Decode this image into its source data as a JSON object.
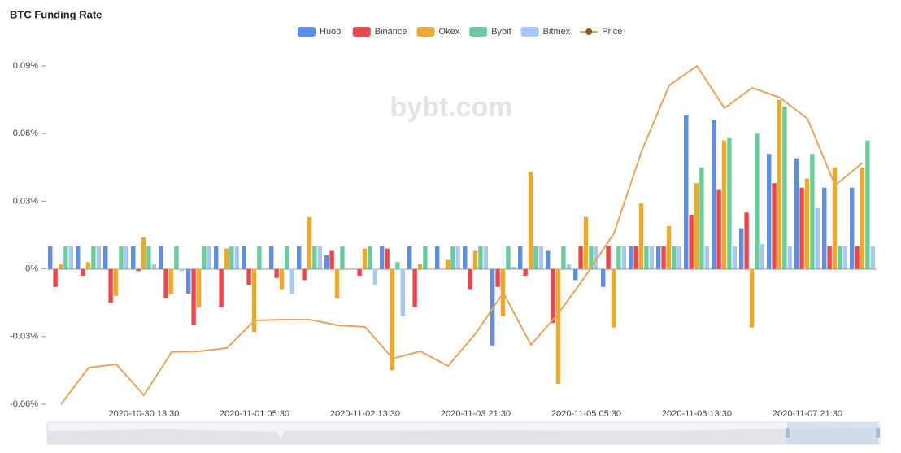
{
  "chart_data": {
    "type": "bar",
    "title": "BTC Funding Rate",
    "watermark": "bybt.com",
    "categories": [
      null,
      null,
      null,
      "2020-10-30 13:30",
      null,
      null,
      null,
      "2020-11-01 05:30",
      null,
      null,
      null,
      "2020-11-02 13:30",
      null,
      null,
      null,
      "2020-11-03 21:30",
      null,
      null,
      null,
      "2020-11-05 05:30",
      null,
      null,
      null,
      "2020-11-06 13:30",
      null,
      null,
      null,
      "2020-11-07 21:30",
      null,
      null
    ],
    "series": [
      {
        "name": "Huobi",
        "color": "#5b8ee6",
        "values": [
          0.01,
          0.01,
          0.01,
          0.01,
          0.01,
          -0.011,
          0.01,
          0.01,
          0.01,
          0.01,
          0.006,
          0,
          0.01,
          0.01,
          0.01,
          0.01,
          -0.034,
          0.01,
          0.008,
          -0.005,
          -0.008,
          0.01,
          0.01,
          0.068,
          0.066,
          0.018,
          0.051,
          0.049,
          0.036,
          0.036
        ]
      },
      {
        "name": "Binance",
        "color": "#e8474c",
        "values": [
          -0.008,
          -0.003,
          -0.015,
          -0.001,
          -0.013,
          -0.025,
          -0.017,
          -0.007,
          -0.004,
          -0.005,
          0.008,
          -0.003,
          0.009,
          -0.017,
          0,
          -0.009,
          -0.008,
          -0.003,
          -0.024,
          0.01,
          0.01,
          0.01,
          0.01,
          0.024,
          0.035,
          0.025,
          0.038,
          0.036,
          0.01,
          0.01
        ]
      },
      {
        "name": "Okex",
        "color": "#e6a93a",
        "values": [
          0.002,
          0.003,
          -0.012,
          0.014,
          -0.011,
          -0.017,
          0.009,
          -0.028,
          -0.009,
          0.023,
          -0.013,
          0.009,
          -0.045,
          0.002,
          0.004,
          0.008,
          -0.021,
          0.043,
          -0.051,
          0.023,
          -0.026,
          0.029,
          0.019,
          0.038,
          0.057,
          -0.026,
          0.075,
          0.04,
          0.045,
          0.045
        ]
      },
      {
        "name": "Bybit",
        "color": "#6ccb9b",
        "values": [
          0.01,
          0.01,
          0.01,
          0.01,
          0.01,
          0.01,
          0.01,
          0.01,
          0.01,
          0.01,
          0.01,
          0.01,
          0.003,
          0.01,
          0.01,
          0.01,
          0.01,
          0.01,
          0.01,
          0.01,
          0.01,
          0.01,
          0.01,
          0.045,
          0.058,
          0.06,
          0.072,
          0.051,
          0.01,
          0.057
        ]
      },
      {
        "name": "Bitmex",
        "color": "#a6c8f5",
        "values": [
          0.01,
          0.01,
          0.01,
          0.002,
          -0.001,
          0.01,
          0.01,
          0,
          -0.011,
          0.01,
          0,
          -0.007,
          -0.021,
          0,
          0.01,
          0.01,
          0.001,
          0.01,
          0.002,
          0.01,
          0.01,
          0.01,
          0.01,
          0.01,
          0.01,
          0.011,
          0.01,
          0.027,
          0.01,
          0.01
        ]
      },
      {
        "name": "Price",
        "color": "#e6a55a",
        "type": "line",
        "axis": "y2",
        "values": [
          13200,
          13470,
          13495,
          13266,
          13585,
          13591,
          13615,
          13819,
          13825,
          13825,
          13783,
          13771,
          13537,
          13591,
          13482,
          13723,
          14023,
          13639,
          13873,
          14156,
          14462,
          15069,
          15556,
          15700,
          15388,
          15538,
          15466,
          15310,
          14817,
          14985
        ]
      }
    ],
    "ylim": [
      -0.06,
      0.09
    ],
    "yticks": [
      {
        "value": -0.06,
        "label": "-0.06%"
      },
      {
        "value": -0.03,
        "label": "-0.03%"
      },
      {
        "value": 0,
        "label": "0%"
      },
      {
        "value": 0.03,
        "label": "0.03%"
      },
      {
        "value": 0.06,
        "label": "0.06%"
      },
      {
        "value": 0.09,
        "label": "0.09%"
      }
    ],
    "y2lim": [
      13200,
      15700
    ],
    "grid": false
  }
}
